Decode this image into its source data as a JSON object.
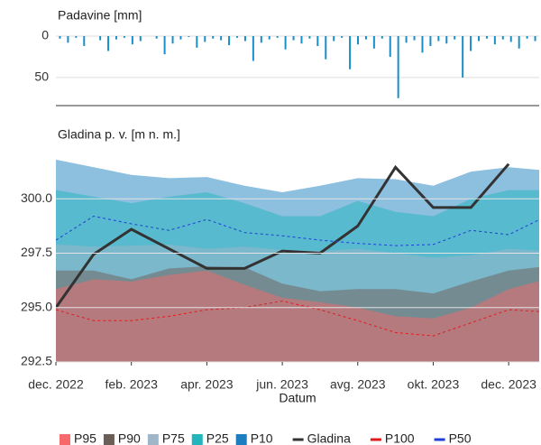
{
  "chart_data": [
    {
      "type": "bar",
      "ylabel": "Padavine [mm]",
      "color": "#1a8fc7",
      "ylim": [
        0,
        84
      ],
      "yticks": [
        0,
        50
      ],
      "inverted": true,
      "grid": true,
      "values": [
        3,
        8,
        2,
        12,
        0,
        5,
        18,
        4,
        2,
        10,
        6,
        0,
        3,
        22,
        9,
        4,
        1,
        14,
        7,
        3,
        5,
        11,
        2,
        6,
        30,
        8,
        4,
        2,
        16,
        5,
        9,
        3,
        12,
        28,
        6,
        2,
        40,
        10,
        4,
        15,
        3,
        25,
        75,
        8,
        5,
        20,
        12,
        6,
        9,
        4,
        50,
        18,
        6,
        3,
        10,
        4,
        7,
        15,
        3,
        6
      ]
    },
    {
      "type": "area",
      "ylabel": "Gladina p. v. [m n. m.]",
      "xlabel": "Datum",
      "x": [
        "2022-12",
        "2023-01",
        "2023-02",
        "2023-03",
        "2023-04",
        "2023-05",
        "2023-06",
        "2023-07",
        "2023-08",
        "2023-09",
        "2023-10",
        "2023-11",
        "2023-12",
        "2024-01"
      ],
      "xlim": [
        "2022-12",
        "2024-01"
      ],
      "xticks": [
        {
          "value": "2022-12",
          "label": "dec. 2022"
        },
        {
          "value": "2023-02",
          "label": "feb. 2023"
        },
        {
          "value": "2023-04",
          "label": "apr. 2023"
        },
        {
          "value": "2023-06",
          "label": "jun. 2023"
        },
        {
          "value": "2023-08",
          "label": "avg. 2023"
        },
        {
          "value": "2023-10",
          "label": "okt. 2023"
        },
        {
          "value": "2023-12",
          "label": "dec. 2023"
        }
      ],
      "ylim": [
        292.5,
        302.5
      ],
      "yticks": [
        292.5,
        {
          "value": 295,
          "label": "295.0"
        },
        297.5,
        {
          "value": 300,
          "label": "300.0"
        }
      ],
      "grid": true,
      "series": [
        {
          "name": "P95",
          "kind": "area",
          "color": "#f8696b",
          "values": [
            295.85,
            296.3,
            296.2,
            296.5,
            296.7,
            296.05,
            295.45,
            295.25,
            295.0,
            294.6,
            294.5,
            295.0,
            295.85,
            296.3
          ]
        },
        {
          "name": "P90",
          "kind": "area",
          "color": "#6b5e57",
          "values": [
            296.7,
            296.7,
            296.3,
            296.8,
            296.9,
            296.85,
            296.1,
            295.75,
            295.85,
            295.85,
            295.65,
            296.2,
            296.7,
            296.9
          ]
        },
        {
          "name": "P75",
          "kind": "area",
          "color": "#9fb6c8",
          "values": [
            297.9,
            297.8,
            297.85,
            297.9,
            297.7,
            297.8,
            297.65,
            297.6,
            297.7,
            297.5,
            297.3,
            297.4,
            297.7,
            297.6
          ]
        },
        {
          "name": "P25",
          "kind": "area",
          "color": "#22b5bd",
          "values": [
            300.4,
            300.1,
            299.8,
            300.1,
            300.3,
            299.8,
            299.2,
            299.2,
            299.9,
            299.4,
            299.2,
            300.0,
            300.4,
            300.4
          ]
        },
        {
          "name": "P10",
          "kind": "area",
          "color": "#1b7fbf",
          "values": [
            301.8,
            301.45,
            301.1,
            300.95,
            301.0,
            300.6,
            300.3,
            300.6,
            300.95,
            300.9,
            300.6,
            301.25,
            301.45,
            301.3
          ]
        },
        {
          "name": "Gladina",
          "kind": "line",
          "color": "#333333",
          "values": [
            295.0,
            297.45,
            298.6,
            297.7,
            296.8,
            296.8,
            297.6,
            297.5,
            298.75,
            301.45,
            299.6,
            299.6,
            301.6,
            null
          ]
        },
        {
          "name": "P100",
          "kind": "line",
          "dash": true,
          "color": "#e31a1c",
          "values": [
            294.9,
            294.4,
            294.4,
            294.6,
            294.9,
            295.0,
            295.3,
            294.9,
            294.4,
            293.85,
            293.7,
            294.3,
            294.9,
            294.8
          ]
        },
        {
          "name": "P50",
          "kind": "line",
          "dash": true,
          "color": "#1f3fd6",
          "values": [
            298.1,
            299.2,
            298.85,
            298.55,
            299.05,
            298.45,
            298.3,
            298.1,
            297.95,
            297.85,
            297.9,
            298.55,
            298.35,
            299.2
          ]
        }
      ]
    }
  ]
}
